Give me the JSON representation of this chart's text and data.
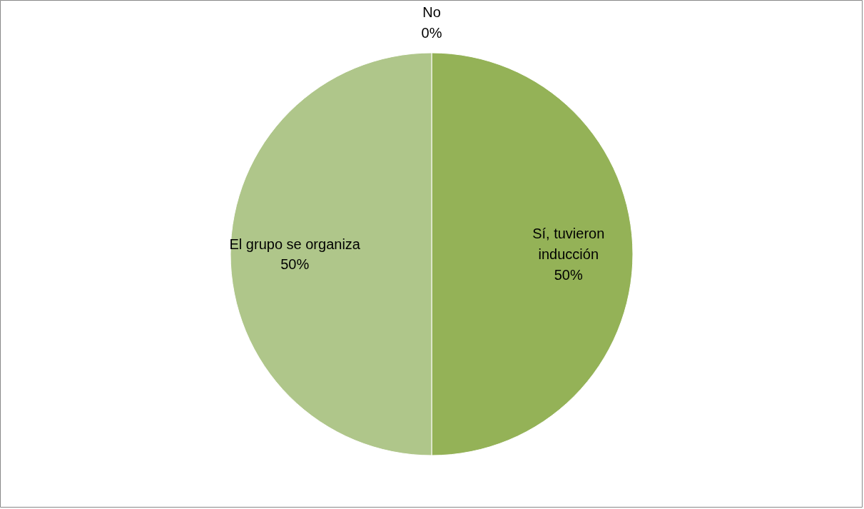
{
  "chart_data": {
    "type": "pie",
    "categories": [
      "No",
      "Sí, tuvieron inducción",
      "El grupo se organiza"
    ],
    "values": [
      0,
      50,
      50
    ],
    "value_labels": [
      "0%",
      "50%",
      "50%"
    ],
    "colors": [
      "#77933c",
      "#94b257",
      "#afc68a"
    ]
  }
}
